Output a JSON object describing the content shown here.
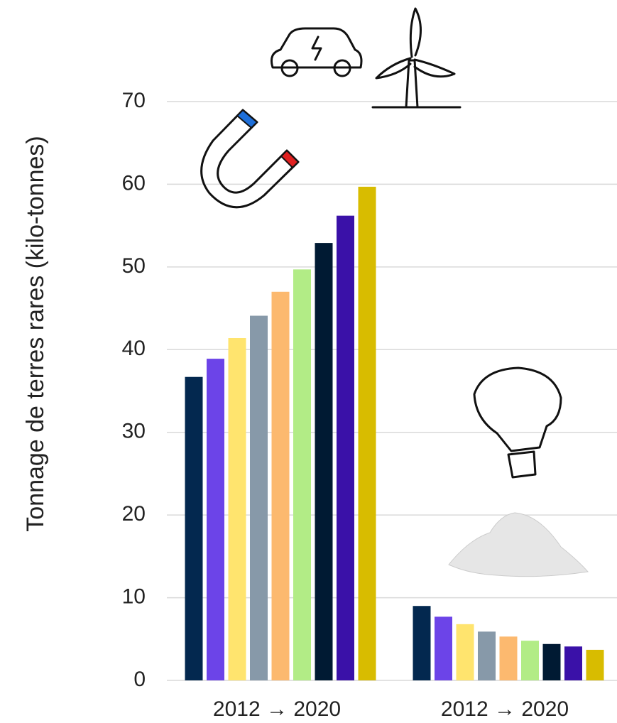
{
  "chart_data": {
    "type": "bar",
    "y_label": "Tonnage de terres rares (kilo-tonnes)",
    "categories": [
      "2012 → 2020",
      "2012 → 2020"
    ],
    "series": [
      {
        "color": "#03284f",
        "values": [
          36.7,
          9.0
        ]
      },
      {
        "color": "#6c44e8",
        "values": [
          38.9,
          7.7
        ]
      },
      {
        "color": "#ffe46e",
        "values": [
          41.4,
          6.8
        ]
      },
      {
        "color": "#8799a9",
        "values": [
          44.1,
          5.9
        ]
      },
      {
        "color": "#fcb96f",
        "values": [
          47.0,
          5.3
        ]
      },
      {
        "color": "#b2ec86",
        "values": [
          49.7,
          4.8
        ]
      },
      {
        "color": "#001a33",
        "values": [
          52.9,
          4.4
        ]
      },
      {
        "color": "#3a11a8",
        "values": [
          56.2,
          4.1
        ]
      },
      {
        "color": "#d8bc00",
        "values": [
          59.7,
          3.7
        ]
      }
    ],
    "ylim": [
      0,
      70
    ],
    "yticks": [
      0,
      10,
      20,
      30,
      40,
      50,
      60,
      70
    ],
    "grid": true
  }
}
